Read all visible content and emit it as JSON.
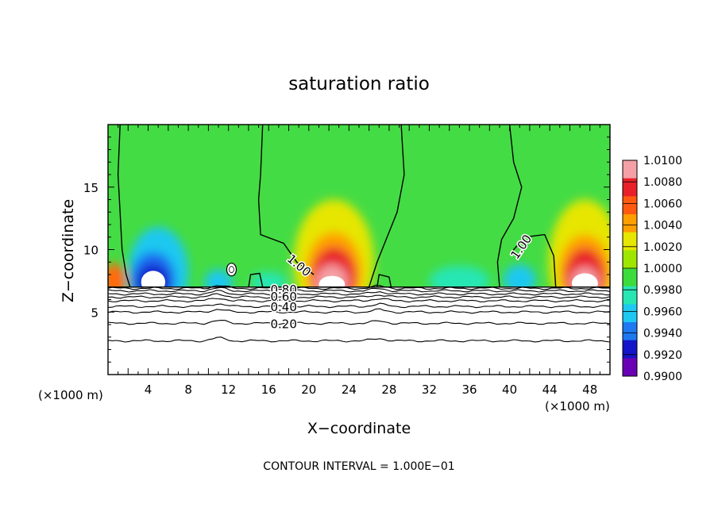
{
  "chart_data": {
    "type": "heatmap",
    "title": "saturation ratio",
    "xlabel": "X−coordinate",
    "ylabel": "Z−coordinate",
    "x_units_left": "(×1000 m)",
    "x_units_right": "(×1000 m)",
    "footer": "CONTOUR INTERVAL = 1.000E−01",
    "xlim": [
      0,
      50
    ],
    "ylim": [
      0,
      20
    ],
    "x_ticks": [
      4,
      8,
      12,
      16,
      20,
      24,
      28,
      32,
      36,
      40,
      44,
      48
    ],
    "y_ticks": [
      5,
      10,
      15
    ],
    "colorbar": {
      "labels": [
        "1.0100",
        "1.0080",
        "1.0060",
        "1.0040",
        "1.0020",
        "1.0000",
        "0.9980",
        "0.9960",
        "0.9940",
        "0.9920",
        "0.9900"
      ],
      "colors": [
        "#f4a0a6",
        "#e8202a",
        "#ff5a10",
        "#ff9e00",
        "#e6e600",
        "#9ee600",
        "#3cdc3c",
        "#28e6b4",
        "#1ec8f0",
        "#1e78f0",
        "#1414c8",
        "#6a00b4"
      ]
    },
    "background_color": "#44dc44",
    "terrain_top_km": 7.0,
    "blobs": [
      {
        "x": 0.6,
        "z": 7.5,
        "rx": 1.2,
        "rz": 1.4,
        "color": "#ff6a10"
      },
      {
        "x": 5.0,
        "z": 8.2,
        "rx": 3.0,
        "rz": 3.6,
        "color": "#1ec8f0"
      },
      {
        "x": 4.5,
        "z": 7.6,
        "rx": 2.2,
        "rz": 2.2,
        "color": "#1e6af0"
      },
      {
        "x": 4.5,
        "z": 7.4,
        "rx": 1.6,
        "rz": 1.4,
        "color": "#1414c8"
      },
      {
        "x": 11.0,
        "z": 7.4,
        "rx": 1.4,
        "rz": 1.0,
        "color": "#1ec8f0"
      },
      {
        "x": 16.0,
        "z": 7.4,
        "rx": 1.8,
        "rz": 0.8,
        "color": "#28e6b4"
      },
      {
        "x": 22.5,
        "z": 9.0,
        "rx": 4.0,
        "rz": 5.0,
        "color": "#e6e600"
      },
      {
        "x": 22.5,
        "z": 8.2,
        "rx": 2.8,
        "rz": 3.2,
        "color": "#ff9e00"
      },
      {
        "x": 22.5,
        "z": 7.8,
        "rx": 2.2,
        "rz": 2.4,
        "color": "#e8202a"
      },
      {
        "x": 22.3,
        "z": 7.4,
        "rx": 1.6,
        "rz": 1.4,
        "color": "#f4a0a6"
      },
      {
        "x": 35.0,
        "z": 7.5,
        "rx": 3.0,
        "rz": 1.2,
        "color": "#28e6b4"
      },
      {
        "x": 41.0,
        "z": 7.6,
        "rx": 1.6,
        "rz": 1.2,
        "color": "#1ec8f0"
      },
      {
        "x": 47.5,
        "z": 9.0,
        "rx": 3.6,
        "rz": 5.0,
        "color": "#e6e600"
      },
      {
        "x": 47.5,
        "z": 8.2,
        "rx": 2.6,
        "rz": 3.0,
        "color": "#ff9e00"
      },
      {
        "x": 47.5,
        "z": 7.8,
        "rx": 2.0,
        "rz": 2.3,
        "color": "#e8202a"
      },
      {
        "x": 47.5,
        "z": 7.4,
        "rx": 1.4,
        "rz": 1.2,
        "color": "#f4a0a6"
      }
    ],
    "contour_1_00": [
      {
        "points": [
          [
            1.2,
            20
          ],
          [
            1.0,
            16
          ],
          [
            1.2,
            13
          ],
          [
            1.4,
            10
          ],
          [
            1.8,
            8
          ],
          [
            2.2,
            7.0
          ]
        ]
      },
      {
        "points": [
          [
            15.4,
            20
          ],
          [
            15.2,
            16
          ],
          [
            15.0,
            14
          ],
          [
            15.2,
            11.2
          ],
          [
            17.5,
            10.5
          ],
          [
            18.8,
            9.0
          ],
          [
            20.5,
            8.0
          ]
        ]
      },
      {
        "points": [
          [
            29.2,
            20
          ],
          [
            29.5,
            16
          ],
          [
            28.8,
            13
          ],
          [
            27.8,
            11.0
          ],
          [
            26.8,
            9.0
          ],
          [
            26.0,
            7.0
          ]
        ]
      },
      {
        "points": [
          [
            40.0,
            20
          ],
          [
            40.4,
            17
          ],
          [
            41.2,
            15
          ],
          [
            40.4,
            12.5
          ],
          [
            39.2,
            10.8
          ],
          [
            38.8,
            9.0
          ],
          [
            39.0,
            7.0
          ]
        ]
      },
      {
        "points": [
          [
            40.2,
            9.8
          ],
          [
            41.5,
            11.0
          ],
          [
            43.5,
            11.2
          ],
          [
            44.4,
            9.5
          ],
          [
            44.6,
            7.0
          ]
        ]
      },
      {
        "points": [
          [
            14.0,
            7.0
          ],
          [
            14.2,
            8.0
          ],
          [
            15.1,
            8.1
          ],
          [
            15.4,
            7.0
          ]
        ]
      },
      {
        "points": [
          [
            26.8,
            7.0
          ],
          [
            27.0,
            8.0
          ],
          [
            28.0,
            7.8
          ],
          [
            28.2,
            7.0
          ]
        ]
      }
    ],
    "contour_labels": [
      {
        "text": "1.00",
        "x": 19.0,
        "z": 8.7,
        "angle": 40
      },
      {
        "text": "1.00",
        "x": 41.2,
        "z": 10.2,
        "angle": -55
      },
      {
        "text": "0.80",
        "x": 17.5,
        "z": 6.75,
        "angle": 0
      },
      {
        "text": "0.60",
        "x": 17.5,
        "z": 6.2,
        "angle": 0
      },
      {
        "text": "0.40",
        "x": 17.5,
        "z": 5.35,
        "angle": 0
      },
      {
        "text": "0.20",
        "x": 17.5,
        "z": 4.0,
        "angle": 0
      }
    ],
    "terrain_contours_z": [
      6.9,
      6.7,
      6.45,
      6.2,
      5.9,
      5.45,
      5.0,
      4.1,
      2.7
    ],
    "ice_cloud": {
      "x": 12.3,
      "z": 8.4
    }
  }
}
